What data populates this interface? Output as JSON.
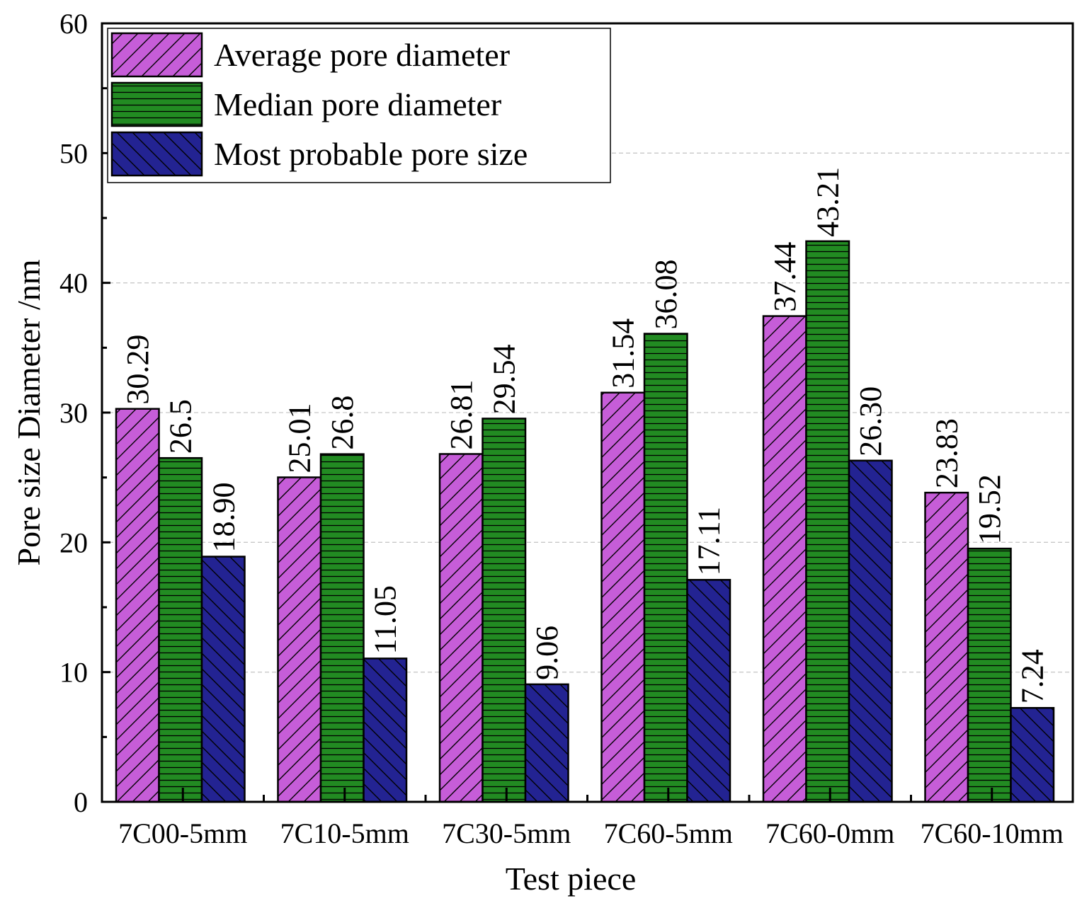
{
  "chart_data": {
    "type": "bar",
    "title": "",
    "xlabel": "Test piece",
    "ylabel": "Pore size Diameter /nm",
    "ylim": [
      0,
      60
    ],
    "yticks": [
      0,
      10,
      20,
      30,
      40,
      50,
      60
    ],
    "grid": "horizontal dashed",
    "legend_position": "top-left",
    "categories": [
      "7C00-5mm",
      "7C10-5mm",
      "7C30-5mm",
      "7C60-5mm",
      "7C60-0mm",
      "7C60-10mm"
    ],
    "series": [
      {
        "name": "Average pore diameter",
        "color": "#c65dd8",
        "pattern": "diagonal-up",
        "values": [
          30.29,
          25.01,
          26.81,
          31.54,
          37.44,
          23.83
        ],
        "labels": [
          "30.29",
          "25.01",
          "26.81",
          "31.54",
          "37.44",
          "23.83"
        ]
      },
      {
        "name": "Median pore diameter",
        "color": "#228b22",
        "pattern": "horizontal",
        "values": [
          26.5,
          26.8,
          29.54,
          36.08,
          43.21,
          19.52
        ],
        "labels": [
          "26.5",
          "26.8",
          "29.54",
          "36.08",
          "43.21",
          "19.52"
        ]
      },
      {
        "name": "Most probable pore size",
        "color": "#232392",
        "pattern": "diagonal-down",
        "values": [
          18.9,
          11.05,
          9.06,
          17.11,
          26.3,
          7.24
        ],
        "labels": [
          "18.90",
          "11.05",
          "9.06",
          "17.11",
          "26.30",
          "7.24"
        ]
      }
    ]
  }
}
